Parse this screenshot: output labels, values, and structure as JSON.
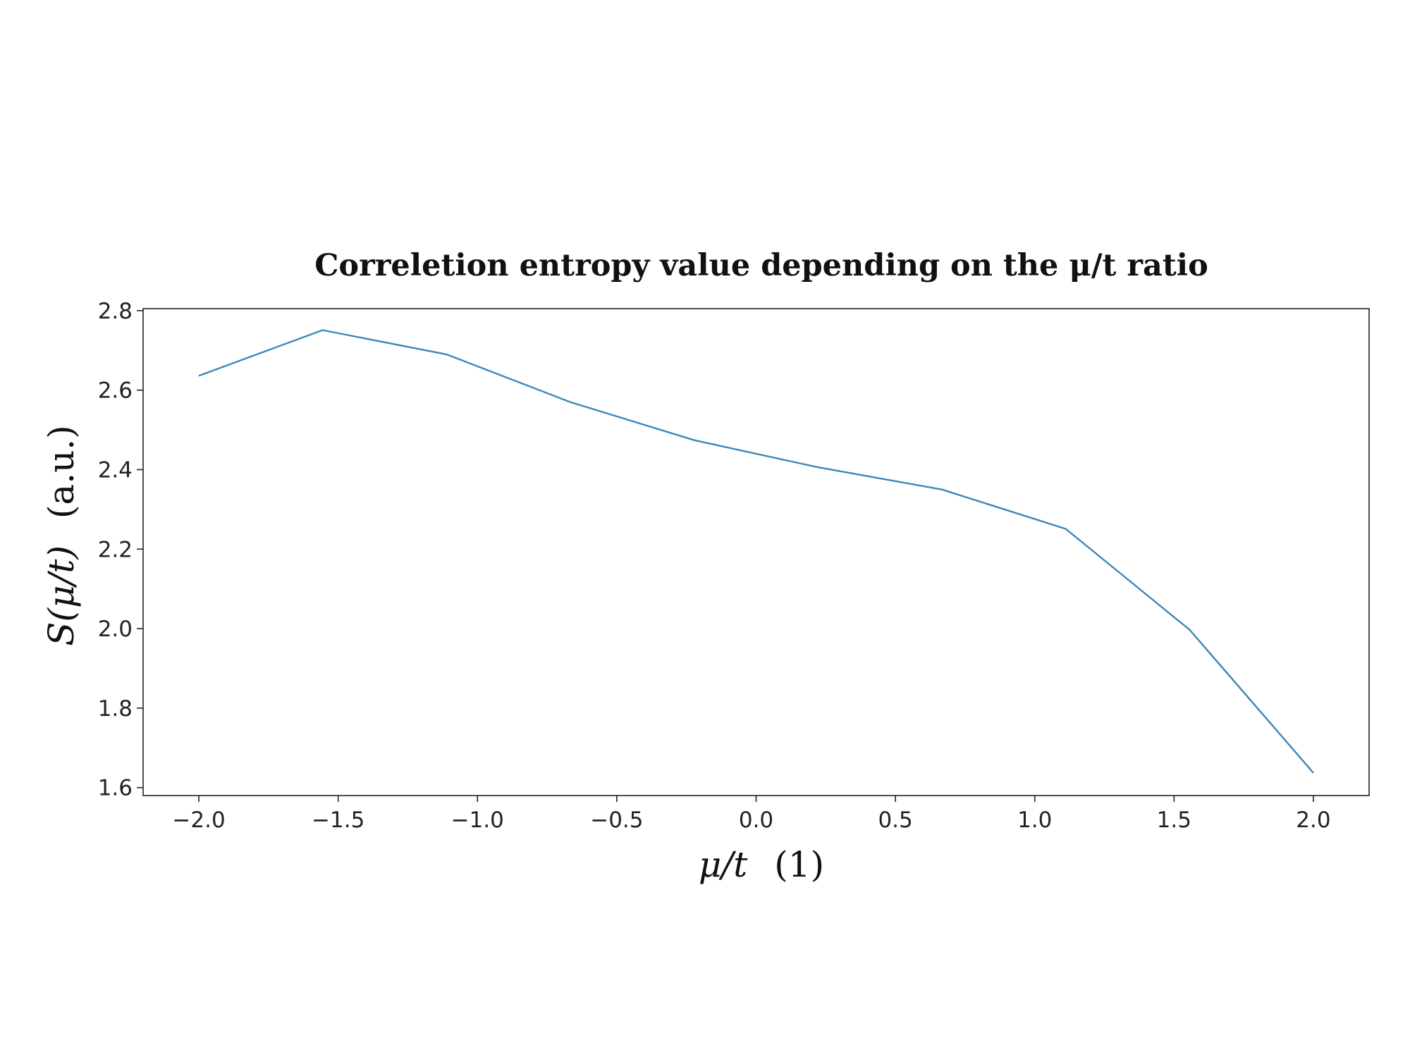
{
  "chart_data": {
    "type": "line",
    "title": "Correletion entropy value depending on the μ/t ratio",
    "xlabel": {
      "variable": "μ/t",
      "unit": "(1)"
    },
    "ylabel": {
      "variable": "S(μ/t)",
      "unit": "(a.u.)"
    },
    "xlim": [
      -2.2,
      2.2
    ],
    "ylim": [
      1.58,
      2.805
    ],
    "x_ticks": [
      -2.0,
      -1.5,
      -1.0,
      -0.5,
      0.0,
      0.5,
      1.0,
      1.5,
      2.0
    ],
    "x_tick_labels": [
      "−2.0",
      "−1.5",
      "−1.0",
      "−0.5",
      "0.0",
      "0.5",
      "1.0",
      "1.5",
      "2.0"
    ],
    "y_ticks": [
      1.6,
      1.8,
      2.0,
      2.2,
      2.4,
      2.6,
      2.8
    ],
    "y_tick_labels": [
      "1.6",
      "1.8",
      "2.0",
      "2.2",
      "2.4",
      "2.6",
      "2.8"
    ],
    "grid": false,
    "series": [
      {
        "color": "#3c87b6",
        "x": [
          -2.0,
          -1.556,
          -1.111,
          -0.667,
          -0.222,
          0.222,
          0.667,
          1.111,
          1.556,
          2.0
        ],
        "y": [
          2.636,
          2.751,
          2.69,
          2.57,
          2.474,
          2.406,
          2.35,
          2.251,
          1.997,
          1.637
        ]
      }
    ]
  }
}
